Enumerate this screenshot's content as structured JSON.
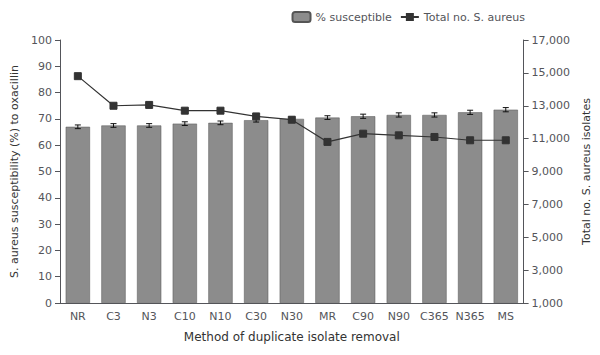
{
  "chart_data": {
    "type": "bar",
    "xlabel": "Method of duplicate isolate removal",
    "ylabel": "S. aureus susceptibility (%) to oxacillin",
    "y2label": "Total no. S. aureus isolates",
    "categories": [
      "NR",
      "C3",
      "N3",
      "C10",
      "N10",
      "C30",
      "N30",
      "MR",
      "C90",
      "N90",
      "C365",
      "N365",
      "MS"
    ],
    "series": [
      {
        "name": "% susceptible",
        "type": "bar",
        "color": "#8C8C8C",
        "values": [
          67.0,
          67.5,
          67.5,
          68.2,
          68.5,
          69.5,
          70.0,
          70.5,
          71.0,
          71.5,
          71.5,
          72.5,
          73.5
        ],
        "errors": [
          0.7,
          0.7,
          0.7,
          0.7,
          0.7,
          0.7,
          0.7,
          0.7,
          0.8,
          0.8,
          0.8,
          0.8,
          0.8
        ]
      },
      {
        "name": "Total no. S. aureus",
        "type": "line",
        "axis": "y2",
        "color": "#333333",
        "marker": "square",
        "values": [
          14800,
          13000,
          13050,
          12700,
          12700,
          12350,
          12150,
          10800,
          11300,
          11200,
          11100,
          10900,
          10900
        ]
      }
    ],
    "ylim": [
      0,
      100
    ],
    "yticks": [
      0,
      10,
      20,
      30,
      40,
      50,
      60,
      70,
      80,
      90,
      100
    ],
    "y2lim": [
      1000,
      17000
    ],
    "y2ticks": [
      {
        "value": 1000,
        "label": "1,000"
      },
      {
        "value": 3000,
        "label": "3,000"
      },
      {
        "value": 5000,
        "label": "5,000"
      },
      {
        "value": 7000,
        "label": "7,000"
      },
      {
        "value": 9000,
        "label": "9,000"
      },
      {
        "value": 11000,
        "label": "11,000"
      },
      {
        "value": 13000,
        "label": "13,000"
      },
      {
        "value": 15000,
        "label": "15,000"
      },
      {
        "value": 17000,
        "label": "17,000"
      }
    ],
    "legend": "upper right",
    "grid": false
  }
}
